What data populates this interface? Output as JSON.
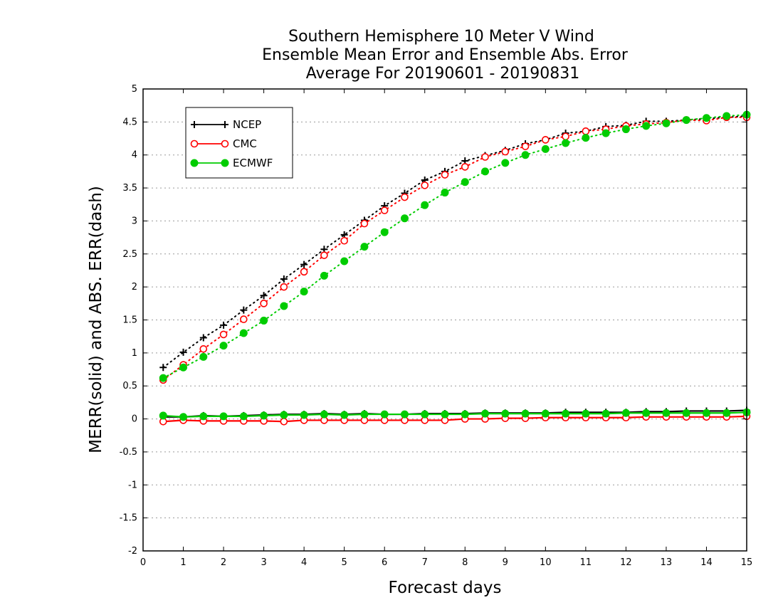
{
  "chart_data": {
    "type": "line",
    "title": [
      "Southern Hemisphere 10 Meter V Wind",
      "Ensemble Mean Error and Ensemble Abs. Error",
      "Average For 20190601 - 20190831"
    ],
    "xlabel": "Forecast days",
    "ylabel": "MERR(solid) and ABS. ERR(dash)",
    "xlim": [
      0,
      15
    ],
    "ylim": [
      -2,
      5
    ],
    "xticks": [
      "0",
      "1",
      "2",
      "3",
      "4",
      "5",
      "6",
      "7",
      "8",
      "9",
      "10",
      "11",
      "12",
      "13",
      "14",
      "15"
    ],
    "yticks": [
      "-2",
      "-1.5",
      "-1",
      "-0.5",
      "0",
      "0.5",
      "1",
      "1.5",
      "2",
      "2.5",
      "3",
      "3.5",
      "4",
      "4.5",
      "5"
    ],
    "grid": true,
    "legend_position": "top-left",
    "x": [
      0.5,
      1,
      1.5,
      2,
      2.5,
      3,
      3.5,
      4,
      4.5,
      5,
      5.5,
      6,
      6.5,
      7,
      7.5,
      8,
      8.5,
      9,
      9.5,
      10,
      10.5,
      11,
      11.5,
      12,
      12.5,
      13,
      13.5,
      14,
      14.5,
      15
    ],
    "series": [
      {
        "name": "NCEP",
        "color": "#000000",
        "marker": "plus",
        "abs_err": [
          0.78,
          1.01,
          1.23,
          1.42,
          1.65,
          1.87,
          2.12,
          2.34,
          2.57,
          2.79,
          3.01,
          3.23,
          3.42,
          3.62,
          3.75,
          3.91,
          3.99,
          4.07,
          4.17,
          4.23,
          4.33,
          4.36,
          4.43,
          4.45,
          4.51,
          4.51,
          4.53,
          4.55,
          4.57,
          4.59
        ],
        "mean_err": [
          0.03,
          0.03,
          0.05,
          0.04,
          0.05,
          0.06,
          0.07,
          0.07,
          0.08,
          0.07,
          0.08,
          0.07,
          0.07,
          0.08,
          0.08,
          0.08,
          0.09,
          0.09,
          0.09,
          0.09,
          0.1,
          0.1,
          0.1,
          0.1,
          0.11,
          0.11,
          0.12,
          0.12,
          0.12,
          0.13
        ]
      },
      {
        "name": "CMC",
        "color": "#ff0000",
        "marker": "open-circle",
        "abs_err": [
          0.59,
          0.82,
          1.06,
          1.28,
          1.51,
          1.75,
          2.0,
          2.23,
          2.48,
          2.7,
          2.96,
          3.16,
          3.36,
          3.54,
          3.7,
          3.82,
          3.97,
          4.05,
          4.13,
          4.23,
          4.28,
          4.36,
          4.39,
          4.44,
          4.47,
          4.49,
          4.53,
          4.52,
          4.57,
          4.57
        ],
        "mean_err": [
          -0.04,
          -0.02,
          -0.03,
          -0.03,
          -0.03,
          -0.03,
          -0.04,
          -0.02,
          -0.02,
          -0.02,
          -0.02,
          -0.02,
          -0.02,
          -0.02,
          -0.02,
          0.0,
          0.0,
          0.01,
          0.01,
          0.02,
          0.02,
          0.02,
          0.02,
          0.02,
          0.03,
          0.03,
          0.03,
          0.03,
          0.03,
          0.04
        ]
      },
      {
        "name": "ECMWF",
        "color": "#00cc00",
        "marker": "filled-circle",
        "abs_err": [
          0.62,
          0.78,
          0.94,
          1.11,
          1.3,
          1.49,
          1.71,
          1.93,
          2.17,
          2.39,
          2.61,
          2.83,
          3.04,
          3.24,
          3.43,
          3.59,
          3.75,
          3.88,
          4.0,
          4.09,
          4.18,
          4.26,
          4.33,
          4.39,
          4.44,
          4.48,
          4.53,
          4.56,
          4.59,
          4.61
        ],
        "mean_err": [
          0.05,
          0.03,
          0.04,
          0.04,
          0.04,
          0.05,
          0.06,
          0.06,
          0.07,
          0.06,
          0.07,
          0.07,
          0.07,
          0.07,
          0.07,
          0.07,
          0.08,
          0.08,
          0.08,
          0.08,
          0.08,
          0.08,
          0.08,
          0.09,
          0.09,
          0.09,
          0.09,
          0.09,
          0.09,
          0.1
        ]
      }
    ]
  }
}
